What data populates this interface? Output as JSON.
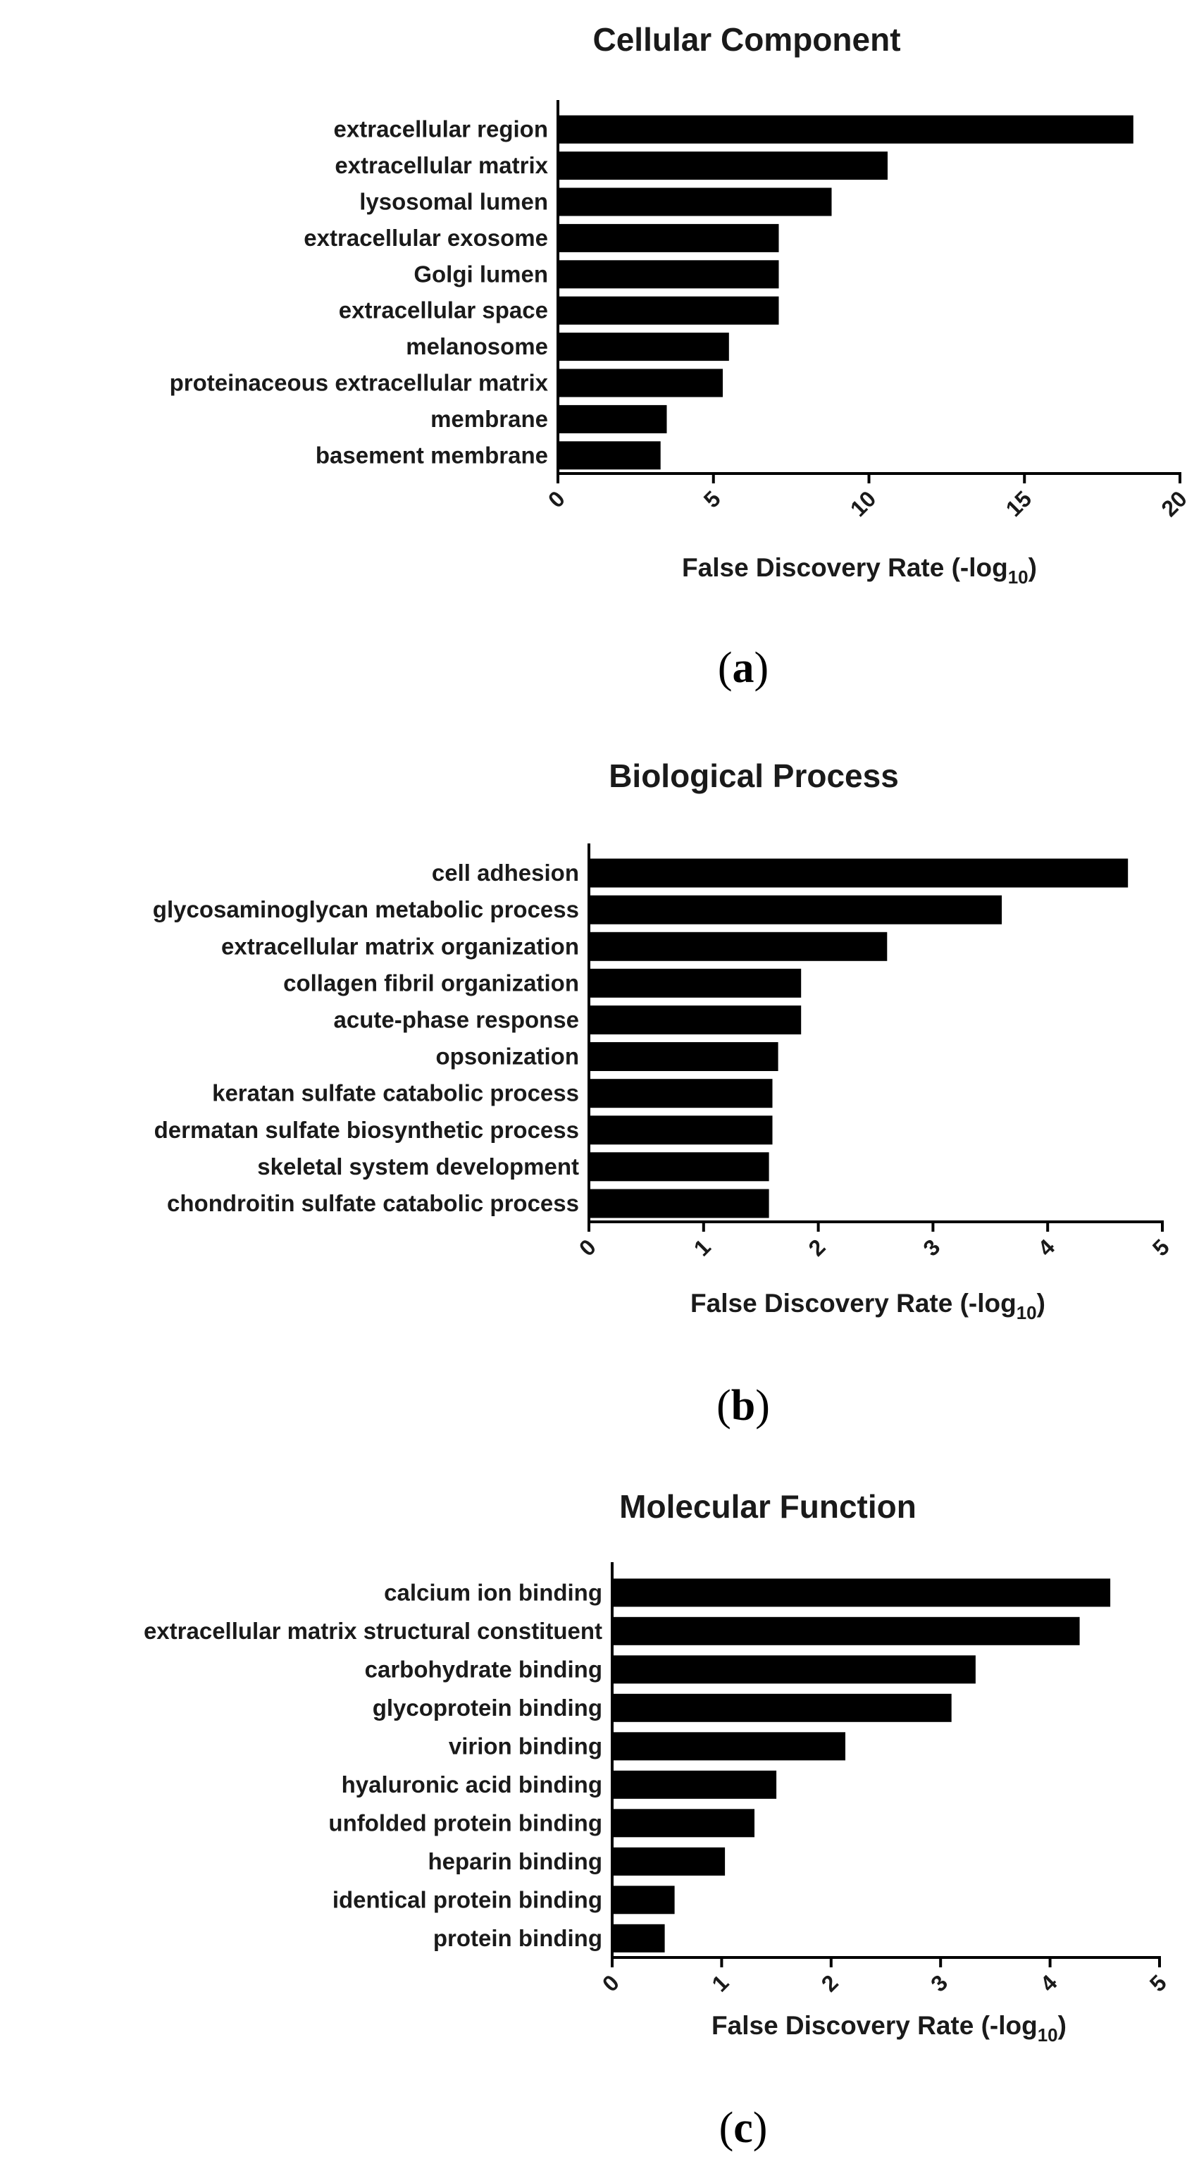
{
  "chart_data": [
    {
      "type": "bar",
      "orientation": "horizontal",
      "title": "Cellular Component",
      "categories": [
        "extracellular region",
        "extracellular matrix",
        "lysosomal lumen",
        "extracellular exosome",
        "Golgi lumen",
        "extracellular space",
        "melanosome",
        "proteinaceous extracellular matrix",
        "membrane",
        "basement membrane"
      ],
      "values": [
        18.5,
        10.6,
        8.8,
        7.1,
        7.1,
        7.1,
        5.5,
        5.3,
        3.5,
        3.3
      ],
      "xlabel": "False Discovery Rate (-log",
      "xlabel_subscript": "10",
      "xlabel_suffix": ")",
      "xlim": [
        0,
        20
      ],
      "xticks": [
        "0",
        "5",
        "10",
        "15",
        "20"
      ],
      "grid": false,
      "panel_label": "a"
    },
    {
      "type": "bar",
      "orientation": "horizontal",
      "title": "Biological Process",
      "categories": [
        "cell adhesion",
        "glycosaminoglycan metabolic process",
        "extracellular matrix organization",
        "collagen fibril organization",
        "acute-phase response",
        "opsonization",
        "keratan sulfate catabolic process",
        "dermatan sulfate biosynthetic process",
        "skeletal system development",
        "chondroitin sulfate catabolic process"
      ],
      "values": [
        4.7,
        3.6,
        2.6,
        1.85,
        1.85,
        1.65,
        1.6,
        1.6,
        1.57,
        1.57
      ],
      "xlabel": "False Discovery Rate (-log",
      "xlabel_subscript": "10",
      "xlabel_suffix": ")",
      "xlim": [
        0,
        5
      ],
      "xticks": [
        "0",
        "1",
        "2",
        "3",
        "4",
        "5"
      ],
      "grid": false,
      "panel_label": "b"
    },
    {
      "type": "bar",
      "orientation": "horizontal",
      "title": "Molecular Function",
      "categories": [
        "calcium ion binding",
        "extracellular matrix structural constituent",
        "carbohydrate binding",
        "glycoprotein binding",
        "virion binding",
        "hyaluronic acid binding",
        "unfolded protein binding",
        "heparin binding",
        "identical protein binding",
        "protein binding"
      ],
      "values": [
        4.55,
        4.27,
        3.32,
        3.1,
        2.13,
        1.5,
        1.3,
        1.03,
        0.57,
        0.48
      ],
      "xlabel": "False Discovery Rate (-log",
      "xlabel_subscript": "10",
      "xlabel_suffix": ")",
      "xlim": [
        0,
        5
      ],
      "xticks": [
        "0",
        "1",
        "2",
        "3",
        "4",
        "5"
      ],
      "grid": false,
      "panel_label": "c"
    }
  ]
}
